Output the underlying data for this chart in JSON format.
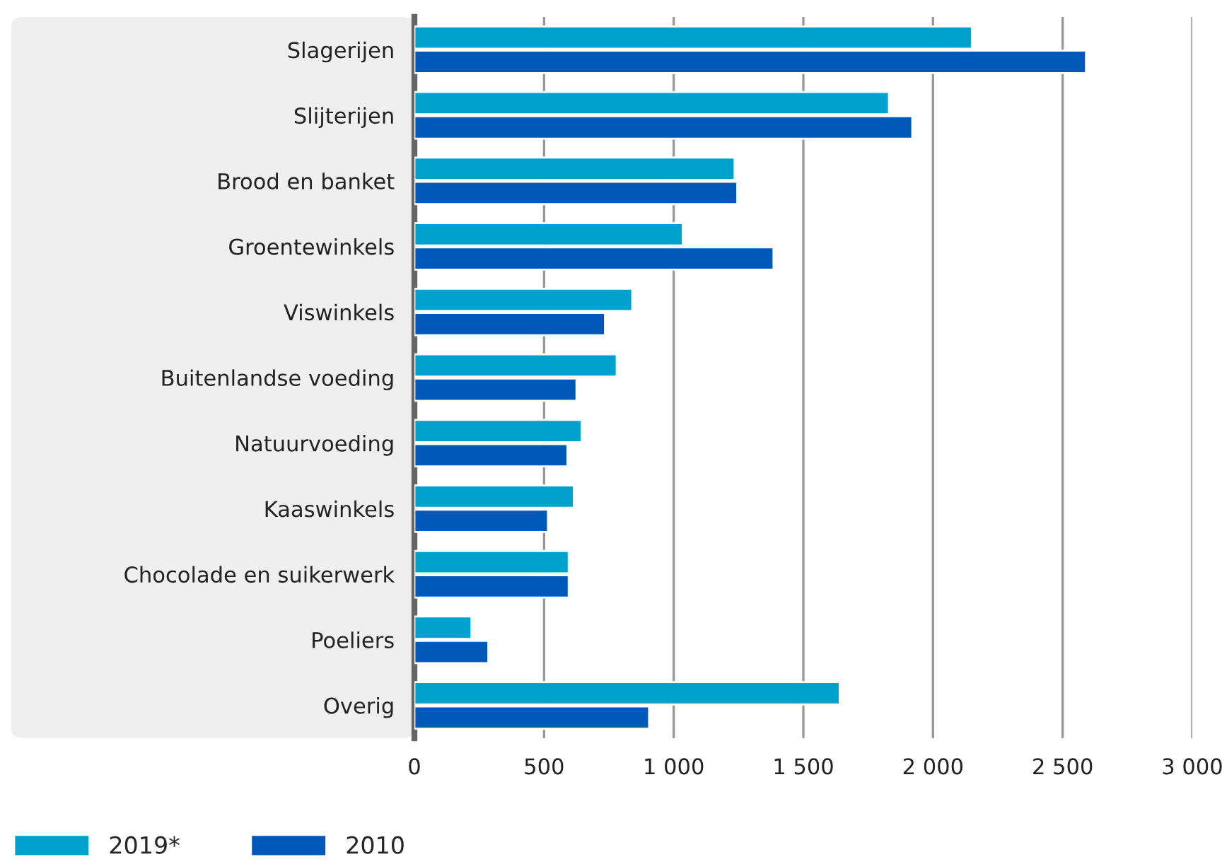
{
  "chart_data": {
    "type": "bar",
    "orientation": "horizontal",
    "categories": [
      "Slagerijen",
      "Slijterijen",
      "Brood en banket",
      "Groentewinkels",
      "Viswinkels",
      "Buitenlandse voeding",
      "Natuurvoeding",
      "Kaaswinkels",
      "Chocolade en suikerwerk",
      "Poeliers",
      "Overig"
    ],
    "series": [
      {
        "name": "2019*",
        "color": "#00a1cd",
        "values": [
          2150,
          1830,
          1235,
          1035,
          840,
          780,
          645,
          615,
          595,
          220,
          1640
        ]
      },
      {
        "name": "2010",
        "color": "#0058b8",
        "values": [
          2590,
          1920,
          1245,
          1385,
          735,
          625,
          590,
          515,
          595,
          285,
          905
        ]
      }
    ],
    "xlim": [
      0,
      3000
    ],
    "xticks": [
      0,
      {
        "value": 500,
        "label": "500"
      },
      {
        "value": 1000,
        "label": "1 000"
      },
      {
        "value": 1500,
        "label": "1 500"
      },
      {
        "value": 2000,
        "label": "2 000"
      },
      {
        "value": 2500,
        "label": "2 500"
      },
      {
        "value": 3000,
        "label": "3 000"
      }
    ],
    "grid": "x",
    "legend": "bottom left"
  }
}
